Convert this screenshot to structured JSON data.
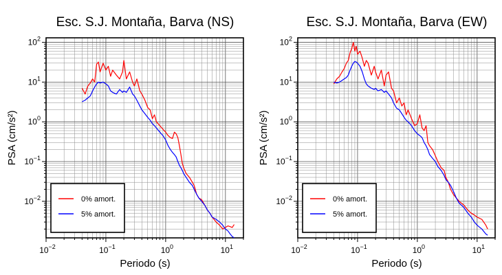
{
  "chart_data": [
    {
      "type": "line",
      "title": "Esc. S.J. Montaña, Barva (NS)",
      "xlabel": "Periodo (s)",
      "ylabel": "PSA (cm/s²)",
      "xscale": "log",
      "yscale": "log",
      "xlim": [
        0.01,
        20
      ],
      "ylim": [
        0.0012,
        130
      ],
      "grid": true,
      "legend_position": "lower-left",
      "x_ticks": [
        {
          "base": "10",
          "exp": "−2"
        },
        {
          "base": "10",
          "exp": "−1"
        },
        {
          "base": "10",
          "exp": "0"
        },
        {
          "base": "10",
          "exp": "1"
        }
      ],
      "y_ticks": [
        {
          "base": "10",
          "exp": "−2"
        },
        {
          "base": "10",
          "exp": "−1"
        },
        {
          "base": "10",
          "exp": "0"
        },
        {
          "base": "10",
          "exp": "1"
        },
        {
          "base": "10",
          "exp": "2"
        }
      ],
      "series": [
        {
          "name": "0% amort.",
          "color": "#ff0000",
          "x": [
            0.04,
            0.045,
            0.05,
            0.055,
            0.06,
            0.065,
            0.07,
            0.075,
            0.08,
            0.09,
            0.1,
            0.11,
            0.12,
            0.13,
            0.15,
            0.17,
            0.19,
            0.2,
            0.22,
            0.25,
            0.28,
            0.3,
            0.33,
            0.37,
            0.4,
            0.45,
            0.5,
            0.55,
            0.6,
            0.65,
            0.7,
            0.8,
            0.9,
            1.0,
            1.1,
            1.2,
            1.3,
            1.4,
            1.5,
            1.6,
            1.7,
            1.8,
            1.9,
            2.0,
            2.2,
            2.5,
            2.8,
            3.0,
            3.3,
            3.6,
            4.0,
            4.5,
            5.0,
            5.5,
            6.0,
            7.0,
            8.0,
            9.0,
            10.0,
            11.0,
            12.0,
            13.0,
            14.0
          ],
          "y": [
            7.0,
            5.0,
            8.0,
            9.5,
            12.0,
            10.0,
            28.0,
            32.0,
            18.0,
            30.0,
            20.0,
            25.0,
            14.0,
            20.0,
            15.0,
            12.0,
            18.0,
            35.0,
            12.0,
            18.0,
            10.0,
            8.0,
            12.0,
            6.0,
            5.0,
            3.5,
            2.3,
            2.0,
            1.2,
            1.5,
            1.0,
            0.8,
            0.65,
            0.55,
            0.45,
            0.4,
            0.38,
            0.55,
            0.5,
            0.4,
            0.25,
            0.15,
            0.09,
            0.07,
            0.05,
            0.04,
            0.03,
            0.025,
            0.015,
            0.012,
            0.011,
            0.008,
            0.006,
            0.005,
            0.004,
            0.003,
            0.0025,
            0.002,
            0.0022,
            0.0024,
            0.0023,
            0.0022,
            0.0026
          ]
        },
        {
          "name": "5% amort.",
          "color": "#0000ff",
          "x": [
            0.04,
            0.045,
            0.05,
            0.055,
            0.06,
            0.065,
            0.07,
            0.075,
            0.08,
            0.09,
            0.1,
            0.11,
            0.12,
            0.13,
            0.15,
            0.17,
            0.19,
            0.2,
            0.22,
            0.25,
            0.28,
            0.3,
            0.33,
            0.37,
            0.4,
            0.45,
            0.5,
            0.55,
            0.6,
            0.65,
            0.7,
            0.8,
            0.9,
            1.0,
            1.1,
            1.2,
            1.3,
            1.4,
            1.5,
            1.6,
            1.7,
            1.8,
            1.9,
            2.0,
            2.2,
            2.5,
            2.8,
            3.0,
            3.3,
            3.6,
            4.0,
            4.5,
            5.0,
            5.5,
            6.0,
            7.0,
            8.0,
            9.0,
            10.0,
            11.0,
            12.0,
            13.0,
            14.0
          ],
          "y": [
            3.2,
            3.5,
            4.0,
            4.5,
            6.0,
            7.5,
            9.0,
            10.0,
            9.5,
            10.0,
            9.0,
            8.0,
            6.0,
            5.5,
            5.0,
            6.5,
            5.5,
            6.0,
            5.5,
            7.5,
            5.0,
            4.5,
            3.5,
            2.5,
            2.0,
            1.6,
            1.3,
            1.1,
            0.9,
            0.8,
            0.7,
            0.55,
            0.45,
            0.35,
            0.25,
            0.2,
            0.17,
            0.15,
            0.13,
            0.1,
            0.08,
            0.07,
            0.06,
            0.05,
            0.04,
            0.03,
            0.025,
            0.02,
            0.015,
            0.012,
            0.01,
            0.008,
            0.006,
            0.005,
            0.004,
            0.0035,
            0.003,
            0.0025,
            0.002,
            0.0018,
            0.0015,
            0.0013,
            0.0012
          ]
        }
      ]
    },
    {
      "type": "line",
      "title": "Esc. S.J. Montaña, Barva (EW)",
      "xlabel": "Periodo (s)",
      "ylabel": "PSA (cm/s²)",
      "xscale": "log",
      "yscale": "log",
      "xlim": [
        0.01,
        20
      ],
      "ylim": [
        0.0012,
        130
      ],
      "grid": true,
      "legend_position": "lower-left",
      "x_ticks": [
        {
          "base": "10",
          "exp": "−2"
        },
        {
          "base": "10",
          "exp": "−1"
        },
        {
          "base": "10",
          "exp": "0"
        },
        {
          "base": "10",
          "exp": "1"
        }
      ],
      "y_ticks": [
        {
          "base": "10",
          "exp": "−2"
        },
        {
          "base": "10",
          "exp": "−1"
        },
        {
          "base": "10",
          "exp": "0"
        },
        {
          "base": "10",
          "exp": "1"
        },
        {
          "base": "10",
          "exp": "2"
        }
      ],
      "series": [
        {
          "name": "0% amort.",
          "color": "#ff0000",
          "x": [
            0.04,
            0.045,
            0.05,
            0.055,
            0.06,
            0.065,
            0.07,
            0.075,
            0.08,
            0.085,
            0.09,
            0.095,
            0.1,
            0.11,
            0.12,
            0.13,
            0.14,
            0.15,
            0.17,
            0.19,
            0.2,
            0.22,
            0.25,
            0.28,
            0.3,
            0.33,
            0.37,
            0.4,
            0.45,
            0.5,
            0.55,
            0.6,
            0.65,
            0.7,
            0.8,
            0.9,
            1.0,
            1.1,
            1.2,
            1.3,
            1.4,
            1.5,
            1.6,
            1.8,
            2.0,
            2.2,
            2.5,
            2.8,
            3.0,
            3.3,
            3.6,
            4.0,
            4.5,
            5.0,
            6.0,
            7.0,
            8.0,
            9.0,
            10.0,
            12.0,
            14.0,
            15.0
          ],
          "y": [
            9.0,
            12.0,
            14.0,
            18.0,
            22.0,
            30.0,
            35.0,
            55.0,
            70.0,
            100.0,
            60.0,
            80.0,
            50.0,
            60.0,
            40.0,
            25.0,
            35.0,
            30.0,
            15.0,
            25.0,
            18.0,
            12.0,
            20.0,
            8.0,
            15.0,
            18.0,
            7.0,
            6.0,
            3.0,
            4.0,
            2.5,
            3.0,
            1.5,
            2.0,
            1.2,
            0.8,
            0.9,
            1.5,
            0.7,
            0.6,
            0.8,
            0.3,
            0.25,
            0.2,
            0.14,
            0.1,
            0.07,
            0.06,
            0.04,
            0.03,
            0.02,
            0.015,
            0.012,
            0.01,
            0.008,
            0.006,
            0.005,
            0.0045,
            0.004,
            0.0035,
            0.0025,
            0.002
          ]
        },
        {
          "name": "5% amort.",
          "color": "#0000ff",
          "x": [
            0.04,
            0.045,
            0.05,
            0.055,
            0.06,
            0.065,
            0.07,
            0.075,
            0.08,
            0.085,
            0.09,
            0.095,
            0.1,
            0.11,
            0.12,
            0.13,
            0.14,
            0.15,
            0.17,
            0.19,
            0.2,
            0.22,
            0.25,
            0.28,
            0.3,
            0.33,
            0.37,
            0.4,
            0.45,
            0.5,
            0.55,
            0.6,
            0.65,
            0.7,
            0.8,
            0.9,
            1.0,
            1.1,
            1.2,
            1.3,
            1.4,
            1.5,
            1.6,
            1.8,
            2.0,
            2.2,
            2.5,
            2.8,
            3.0,
            3.3,
            3.6,
            4.0,
            4.5,
            5.0,
            6.0,
            7.0,
            8.0,
            9.0,
            10.0,
            12.0,
            14.0,
            15.0
          ],
          "y": [
            10.0,
            9.5,
            10.0,
            11.0,
            12.0,
            13.0,
            15.0,
            20.0,
            25.0,
            30.0,
            33.0,
            32.0,
            30.0,
            25.0,
            18.0,
            12.0,
            9.0,
            8.0,
            7.0,
            6.5,
            7.0,
            6.0,
            6.5,
            5.5,
            6.0,
            5.0,
            4.0,
            3.0,
            2.2,
            2.0,
            1.6,
            1.3,
            1.1,
            1.0,
            0.8,
            0.6,
            0.5,
            0.45,
            0.4,
            0.3,
            0.25,
            0.2,
            0.15,
            0.12,
            0.1,
            0.075,
            0.06,
            0.045,
            0.035,
            0.03,
            0.025,
            0.018,
            0.012,
            0.009,
            0.007,
            0.005,
            0.004,
            0.003,
            0.0025,
            0.002,
            0.0015,
            0.0014
          ]
        }
      ]
    }
  ]
}
